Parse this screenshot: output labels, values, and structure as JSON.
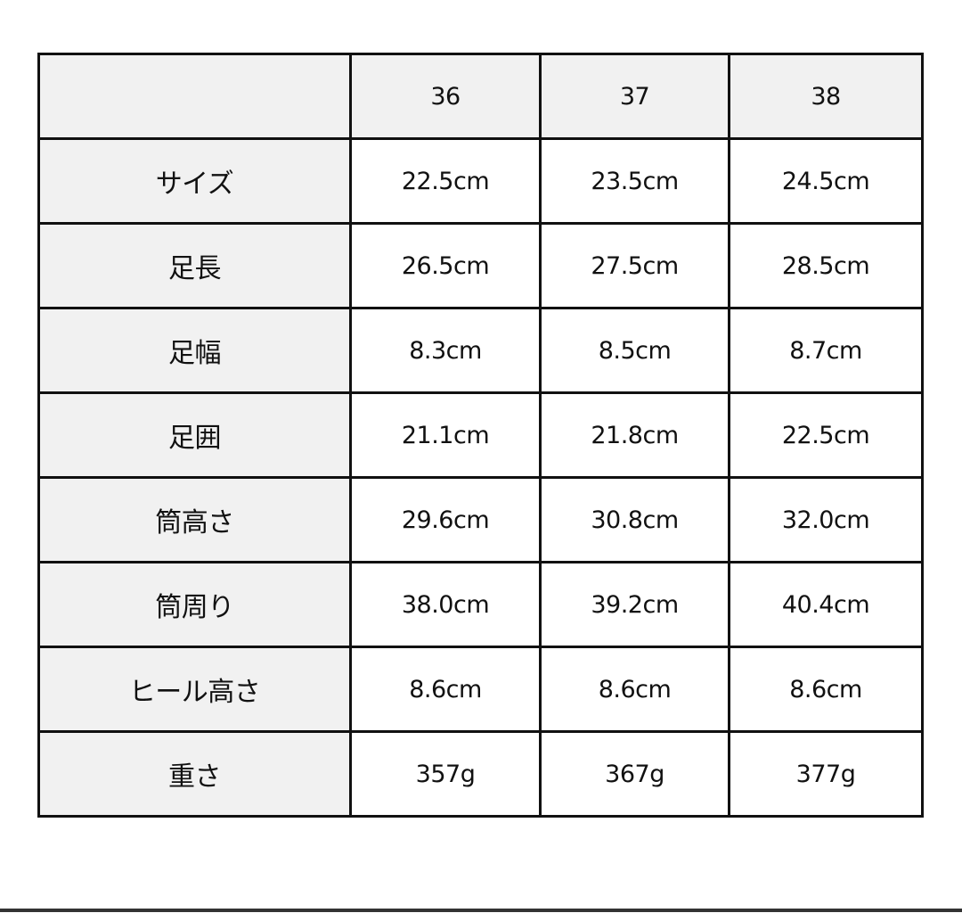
{
  "table": {
    "header": [
      "",
      "36",
      "37",
      "38"
    ],
    "rows": [
      {
        "label": "サイズ",
        "values": [
          "22.5cm",
          "23.5cm",
          "24.5cm"
        ]
      },
      {
        "label": "足長",
        "values": [
          "26.5cm",
          "27.5cm",
          "28.5cm"
        ]
      },
      {
        "label": "足幅",
        "values": [
          "8.3cm",
          "8.5cm",
          "8.7cm"
        ]
      },
      {
        "label": "足囲",
        "values": [
          "21.1cm",
          "21.8cm",
          "22.5cm"
        ]
      },
      {
        "label": "筒高さ",
        "values": [
          "29.6cm",
          "30.8cm",
          "32.0cm"
        ]
      },
      {
        "label": "筒周り",
        "values": [
          "38.0cm",
          "39.2cm",
          "40.4cm"
        ]
      },
      {
        "label": "ヒール高さ",
        "values": [
          "8.6cm",
          "8.6cm",
          "8.6cm"
        ]
      },
      {
        "label": "重さ",
        "values": [
          "357g",
          "367g",
          "377g"
        ]
      }
    ]
  },
  "colors": {
    "header_bg": "#f1f1f1",
    "border": "#111111"
  }
}
